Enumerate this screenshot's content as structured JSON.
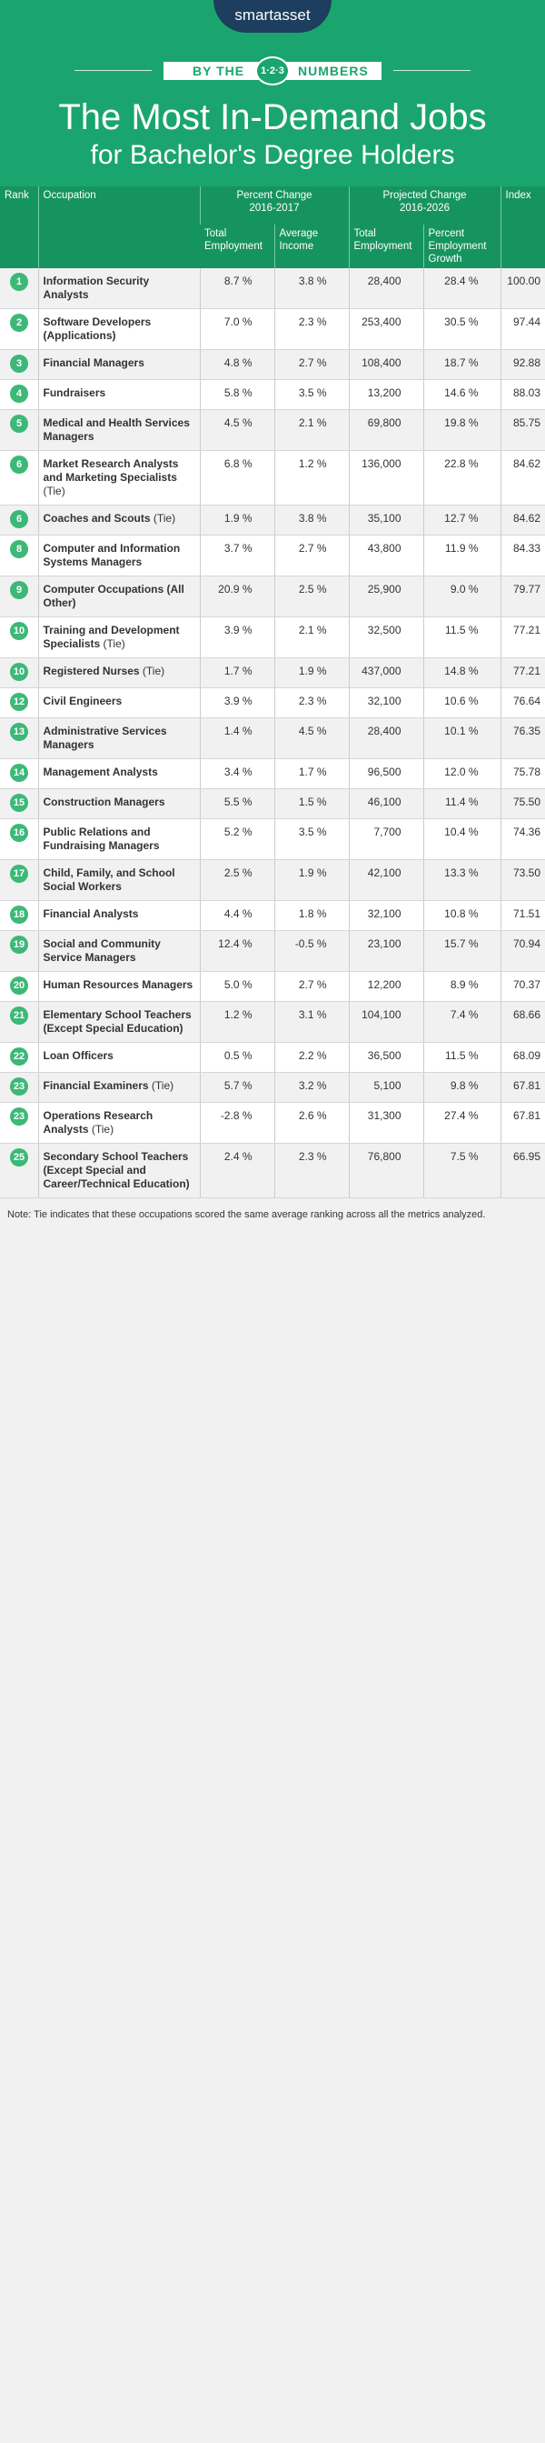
{
  "logo": "smartasset",
  "banner": {
    "left": "BY THE",
    "badge": "1·2·3",
    "right": "NUMBERS"
  },
  "title": {
    "line1": "The Most In-Demand Jobs",
    "line2": "for Bachelor's Degree Holders"
  },
  "table": {
    "headers": {
      "rank": "Rank",
      "occupation": "Occupation",
      "percent_change": {
        "label": "Percent Change",
        "period": "2016-2017",
        "columns": [
          "Total Employment",
          "Average Income"
        ]
      },
      "projected_change": {
        "label": "Projected Change",
        "period": "2016-2026",
        "columns": [
          "Total Employment",
          "Percent Employment Growth"
        ]
      },
      "index": "Index"
    },
    "rows": [
      {
        "rank": "1",
        "occupation": "Information Security Analysts",
        "cells": [
          "8.7 %",
          "3.8 %",
          "28,400",
          "28.4 %",
          "100.00"
        ]
      },
      {
        "rank": "2",
        "occupation": "Software Developers (Applications)",
        "cells": [
          "7.0 %",
          "2.3 %",
          "253,400",
          "30.5 %",
          "97.44"
        ]
      },
      {
        "rank": "3",
        "occupation": "Financial Managers",
        "cells": [
          "4.8 %",
          "2.7 %",
          "108,400",
          "18.7 %",
          "92.88"
        ]
      },
      {
        "rank": "4",
        "occupation": "Fundraisers",
        "cells": [
          "5.8 %",
          "3.5 %",
          "13,200",
          "14.6 %",
          "88.03"
        ]
      },
      {
        "rank": "5",
        "occupation": "Medical and Health Services Managers",
        "cells": [
          "4.5 %",
          "2.1 %",
          "69,800",
          "19.8 %",
          "85.75"
        ]
      },
      {
        "rank": "6",
        "occupation": "Market Research Analysts and Marketing Specialists",
        "tie": "(Tie)",
        "cells": [
          "6.8 %",
          "1.2 %",
          "136,000",
          "22.8 %",
          "84.62"
        ]
      },
      {
        "rank": "6",
        "occupation": "Coaches and Scouts",
        "tie": "(Tie)",
        "cells": [
          "1.9 %",
          "3.8 %",
          "35,100",
          "12.7 %",
          "84.62"
        ]
      },
      {
        "rank": "8",
        "occupation": "Computer and Information Systems Managers",
        "cells": [
          "3.7 %",
          "2.7 %",
          "43,800",
          "11.9 %",
          "84.33"
        ]
      },
      {
        "rank": "9",
        "occupation": "Computer Occupations (All Other)",
        "cells": [
          "20.9 %",
          "2.5 %",
          "25,900",
          "9.0 %",
          "79.77"
        ]
      },
      {
        "rank": "10",
        "occupation": "Training and Development Specialists",
        "tie": "(Tie)",
        "cells": [
          "3.9 %",
          "2.1 %",
          "32,500",
          "11.5 %",
          "77.21"
        ]
      },
      {
        "rank": "10",
        "occupation": "Registered Nurses",
        "tie": "(Tie)",
        "cells": [
          "1.7 %",
          "1.9 %",
          "437,000",
          "14.8 %",
          "77.21"
        ]
      },
      {
        "rank": "12",
        "occupation": "Civil Engineers",
        "cells": [
          "3.9 %",
          "2.3 %",
          "32,100",
          "10.6 %",
          "76.64"
        ]
      },
      {
        "rank": "13",
        "occupation": "Administrative Services Managers",
        "cells": [
          "1.4 %",
          "4.5 %",
          "28,400",
          "10.1 %",
          "76.35"
        ]
      },
      {
        "rank": "14",
        "occupation": "Management Analysts",
        "cells": [
          "3.4 %",
          "1.7 %",
          "96,500",
          "12.0 %",
          "75.78"
        ]
      },
      {
        "rank": "15",
        "occupation": "Construction Managers",
        "cells": [
          "5.5 %",
          "1.5 %",
          "46,100",
          "11.4 %",
          "75.50"
        ]
      },
      {
        "rank": "16",
        "occupation": "Public Relations and Fundraising Managers",
        "cells": [
          "5.2 %",
          "3.5 %",
          "7,700",
          "10.4 %",
          "74.36"
        ]
      },
      {
        "rank": "17",
        "occupation": "Child, Family, and School Social Workers",
        "cells": [
          "2.5 %",
          "1.9 %",
          "42,100",
          "13.3 %",
          "73.50"
        ]
      },
      {
        "rank": "18",
        "occupation": "Financial Analysts",
        "cells": [
          "4.4 %",
          "1.8 %",
          "32,100",
          "10.8 %",
          "71.51"
        ]
      },
      {
        "rank": "19",
        "occupation": "Social and Community Service Managers",
        "cells": [
          "12.4 %",
          "-0.5 %",
          "23,100",
          "15.7 %",
          "70.94"
        ]
      },
      {
        "rank": "20",
        "occupation": "Human Resources Managers",
        "cells": [
          "5.0 %",
          "2.7 %",
          "12,200",
          "8.9 %",
          "70.37"
        ]
      },
      {
        "rank": "21",
        "occupation": "Elementary School Teachers (Except Special Education)",
        "cells": [
          "1.2 %",
          "3.1 %",
          "104,100",
          "7.4 %",
          "68.66"
        ]
      },
      {
        "rank": "22",
        "occupation": "Loan Officers",
        "cells": [
          "0.5 %",
          "2.2 %",
          "36,500",
          "11.5 %",
          "68.09"
        ]
      },
      {
        "rank": "23",
        "occupation": "Financial Examiners",
        "tie": "(Tie)",
        "cells": [
          "5.7 %",
          "3.2 %",
          "5,100",
          "9.8 %",
          "67.81"
        ]
      },
      {
        "rank": "23",
        "occupation": "Operations Research Analysts",
        "tie": "(Tie)",
        "cells": [
          "-2.8 %",
          "2.6 %",
          "31,300",
          "27.4 %",
          "67.81"
        ]
      },
      {
        "rank": "25",
        "occupation": "Secondary School Teachers (Except Special and Career/Technical Education)",
        "cells": [
          "2.4 %",
          "2.3 %",
          "76,800",
          "7.5 %",
          "66.95"
        ]
      }
    ]
  },
  "note": "Note: Tie indicates that these occupations scored the same average ranking across all the metrics analyzed."
}
